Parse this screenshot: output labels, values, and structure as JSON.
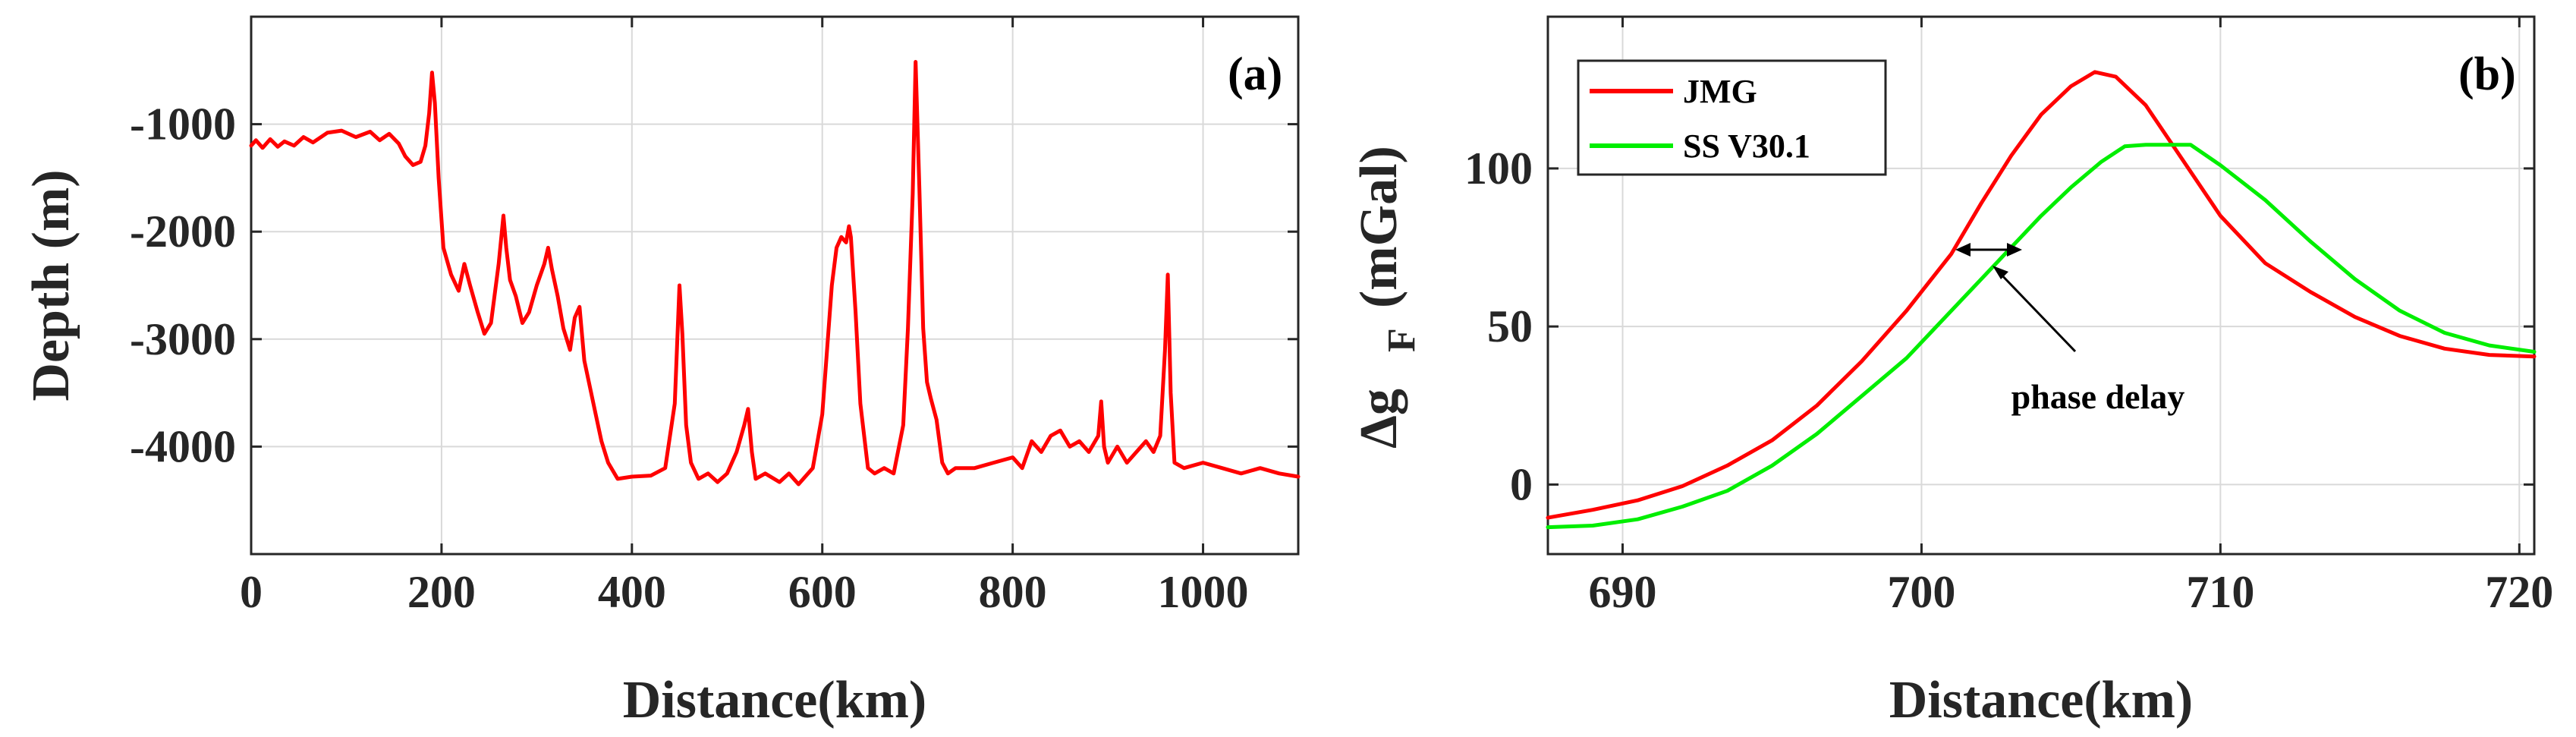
{
  "chart_data": [
    {
      "type": "line",
      "panel_label": "(a)",
      "title": "",
      "xlabel": "Distance(km)",
      "ylabel": "Depth (m)",
      "xlim": [
        0,
        1100
      ],
      "ylim": [
        -5000,
        0
      ],
      "xticks": [
        0,
        200,
        400,
        600,
        800,
        1000
      ],
      "yticks": [
        -4000,
        -3000,
        -2000,
        -1000
      ],
      "grid": true,
      "series": [
        {
          "name": "Depth",
          "color": "#ff0000",
          "x": [
            0,
            5,
            12,
            20,
            28,
            35,
            45,
            55,
            65,
            80,
            95,
            110,
            125,
            135,
            145,
            155,
            162,
            170,
            178,
            183,
            187,
            190,
            193,
            197,
            202,
            210,
            218,
            224,
            230,
            238,
            245,
            252,
            260,
            265,
            268,
            272,
            278,
            285,
            292,
            300,
            308,
            312,
            316,
            322,
            328,
            335,
            340,
            345,
            350,
            356,
            362,
            368,
            375,
            385,
            400,
            420,
            435,
            445,
            450,
            453,
            457,
            462,
            470,
            480,
            490,
            500,
            510,
            518,
            522,
            526,
            530,
            540,
            555,
            565,
            575,
            590,
            600,
            610,
            615,
            620,
            625,
            628,
            630,
            635,
            640,
            648,
            655,
            665,
            675,
            685,
            690,
            695,
            698,
            702,
            706,
            710,
            714,
            720,
            726,
            732,
            740,
            760,
            780,
            800,
            810,
            820,
            830,
            840,
            850,
            860,
            870,
            880,
            890,
            893,
            896,
            900,
            910,
            920,
            930,
            940,
            948,
            955,
            960,
            963,
            966,
            970,
            980,
            1000,
            1020,
            1040,
            1060,
            1080,
            1100
          ],
          "y": [
            -1200,
            -1150,
            -1220,
            -1140,
            -1210,
            -1160,
            -1200,
            -1120,
            -1170,
            -1080,
            -1060,
            -1120,
            -1070,
            -1150,
            -1090,
            -1180,
            -1300,
            -1380,
            -1350,
            -1200,
            -900,
            -520,
            -800,
            -1500,
            -2150,
            -2400,
            -2550,
            -2300,
            -2500,
            -2750,
            -2950,
            -2850,
            -2300,
            -1850,
            -2150,
            -2450,
            -2600,
            -2850,
            -2750,
            -2500,
            -2300,
            -2150,
            -2350,
            -2600,
            -2900,
            -3100,
            -2800,
            -2700,
            -3200,
            -3450,
            -3700,
            -3950,
            -4150,
            -4300,
            -4280,
            -4270,
            -4200,
            -3600,
            -2500,
            -2950,
            -3800,
            -4150,
            -4300,
            -4250,
            -4330,
            -4250,
            -4050,
            -3800,
            -3650,
            -4050,
            -4300,
            -4250,
            -4330,
            -4250,
            -4350,
            -4200,
            -3700,
            -2500,
            -2150,
            -2050,
            -2100,
            -1950,
            -2050,
            -2750,
            -3600,
            -4200,
            -4250,
            -4200,
            -4250,
            -3800,
            -2900,
            -1650,
            -420,
            -1600,
            -2900,
            -3400,
            -3550,
            -3750,
            -4150,
            -4250,
            -4200,
            -4200,
            -4150,
            -4100,
            -4200,
            -3950,
            -4050,
            -3900,
            -3850,
            -4000,
            -3950,
            -4050,
            -3900,
            -3580,
            -4000,
            -4150,
            -4000,
            -4150,
            -4050,
            -3950,
            -4050,
            -3900,
            -3100,
            -2400,
            -3500,
            -4150,
            -4200,
            -4150,
            -4200,
            -4250,
            -4200,
            -4250,
            -4280
          ]
        }
      ]
    },
    {
      "type": "line",
      "panel_label": "(b)",
      "title": "",
      "xlabel": "Distance(km)",
      "ylabel_main": "Δg",
      "ylabel_sub": "F",
      "ylabel_unit": "(mGal)",
      "xlim": [
        687.5,
        720.5
      ],
      "ylim": [
        -22,
        148
      ],
      "xticks": [
        690,
        700,
        710,
        720
      ],
      "yticks": [
        0,
        50,
        100
      ],
      "grid": true,
      "legend_position": "top-left",
      "annotation": "phase delay",
      "series": [
        {
          "name": "JMG",
          "color": "#ff0000",
          "x": [
            687.5,
            689,
            690.5,
            692,
            693.5,
            695,
            696.5,
            698,
            699.5,
            701,
            702,
            703,
            704,
            705,
            705.8,
            706.5,
            707.5,
            708.5,
            710,
            711.5,
            713,
            714.5,
            716,
            717.5,
            719,
            720.5
          ],
          "y": [
            -10.5,
            -8,
            -5,
            -0.5,
            6,
            14,
            25,
            39,
            55,
            73,
            89,
            104,
            117,
            126,
            130.5,
            129,
            120,
            106,
            85,
            70,
            61,
            53,
            47,
            43,
            41,
            40.5
          ]
        },
        {
          "name": "SS V30.1",
          "color": "#00ee00",
          "x": [
            687.5,
            689,
            690.5,
            692,
            693.5,
            695,
            696.5,
            698,
            699.5,
            701,
            702,
            703,
            704,
            705,
            706,
            706.8,
            707.5,
            708,
            709,
            710,
            711.5,
            713,
            714.5,
            716,
            717.5,
            719,
            720.5
          ],
          "y": [
            -13.5,
            -13,
            -11,
            -7,
            -2,
            6,
            16,
            28,
            40,
            55,
            65,
            75,
            85,
            94,
            102,
            107,
            107.5,
            107.5,
            107.5,
            101,
            90,
            77,
            65,
            55,
            48,
            44,
            42
          ]
        }
      ]
    }
  ]
}
